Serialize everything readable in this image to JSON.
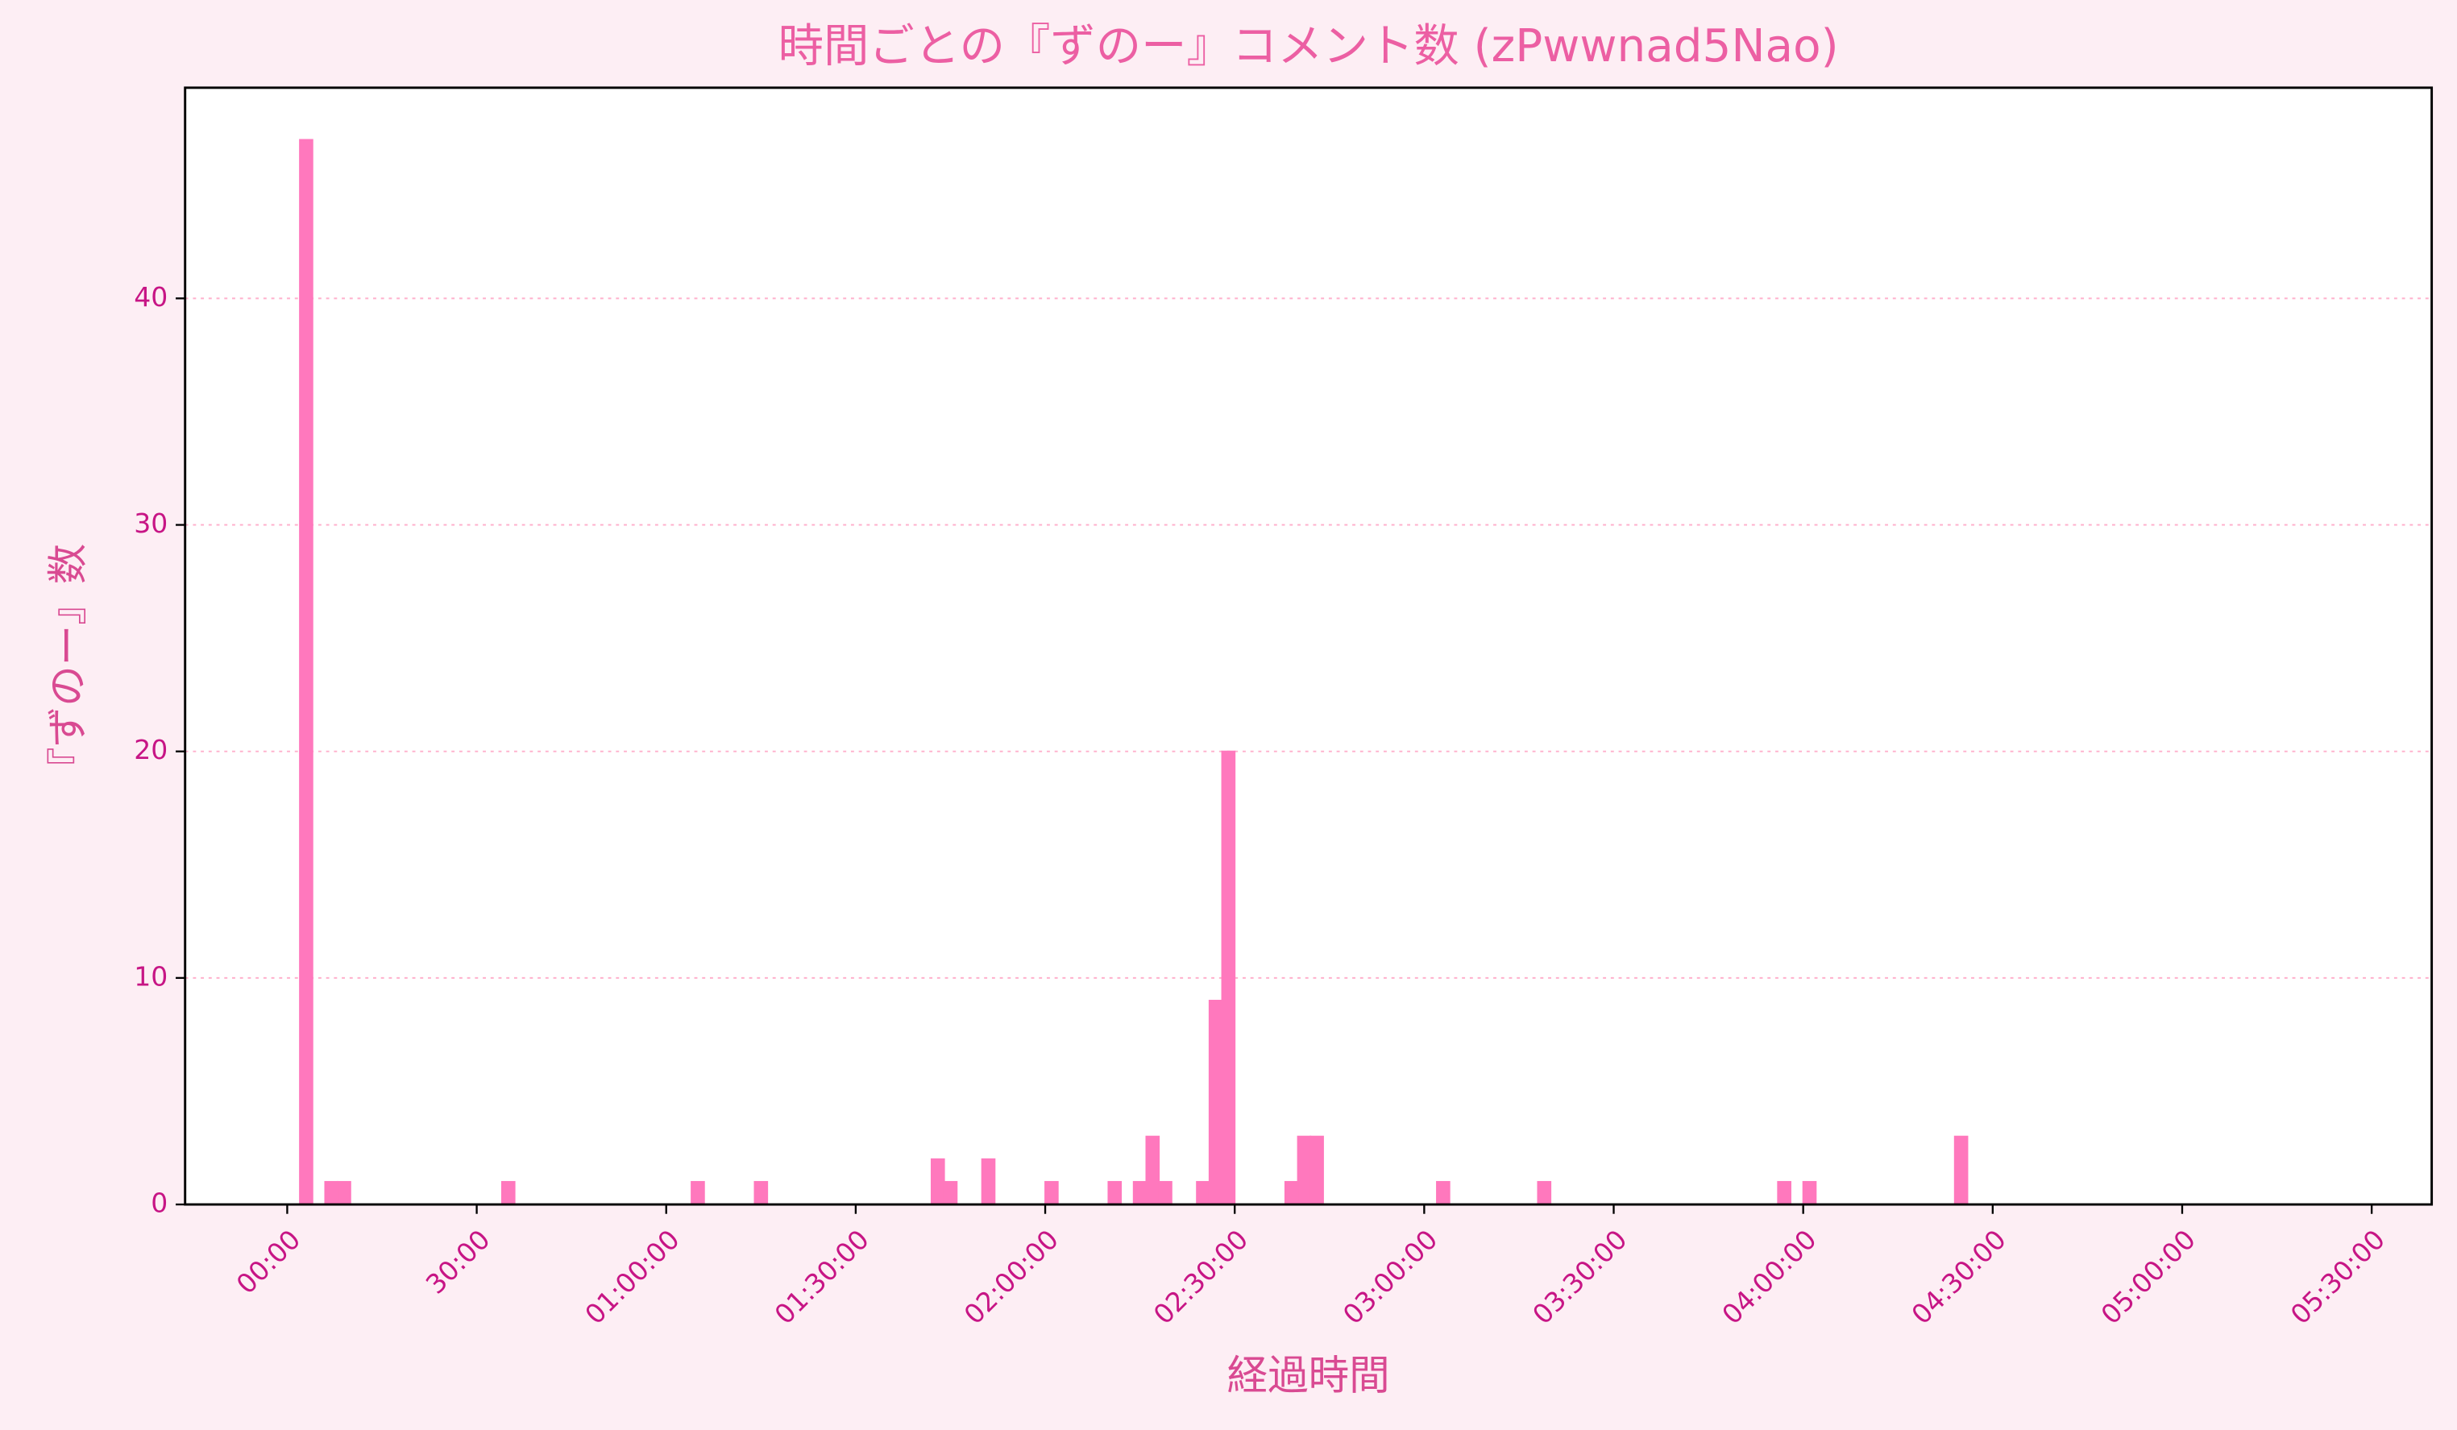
{
  "chart_data": {
    "type": "histogram",
    "title": "時間ごとの『ずのー』コメント数 (zPwwnad5Nao)",
    "x_label": "経過時間",
    "y_label": "『ずのー』数",
    "color": "#ff78bd",
    "grid": true,
    "bins": [
      0,
      120,
      240,
      360,
      480,
      600,
      720,
      840,
      960,
      1080,
      1200,
      1320,
      1440,
      1560,
      1680,
      1800,
      1920,
      2040,
      2160,
      2280,
      2400,
      2520,
      2640,
      2760,
      2880,
      3000,
      3120,
      3240,
      3360,
      3480,
      3600,
      3720,
      3840,
      3960,
      4080,
      4200,
      4320,
      4440,
      4560,
      4680,
      4800,
      4920,
      5040,
      5160,
      5280,
      5400,
      5520,
      5640,
      5760,
      5880,
      6000,
      6120,
      6240,
      6360,
      6480,
      6600,
      6720,
      6840,
      6960,
      7080,
      7200,
      7320,
      7440,
      7560,
      7680,
      7800,
      7920,
      8040,
      8160,
      8280,
      8400,
      8520,
      8640,
      8760,
      8880,
      9000,
      9120,
      9240,
      9360,
      9480,
      9600,
      9720,
      9840,
      9960,
      10080,
      10200,
      10320,
      10440,
      10560,
      10680,
      10800,
      10920,
      11040,
      11160,
      11280,
      11400,
      11520,
      11640,
      11760,
      11880,
      12000,
      12120,
      12240,
      12360,
      12480,
      12600,
      12720,
      12840,
      12960,
      13080,
      13200,
      13320,
      13440,
      13560,
      13680,
      13800,
      13920,
      14040,
      14160,
      14280,
      14400,
      14520,
      14640,
      14760,
      14880,
      15000,
      15120,
      15240,
      15360,
      15480,
      15600,
      15720,
      15840,
      15960,
      16080,
      16200,
      16320,
      16440,
      16560,
      16680,
      16800,
      16920,
      17040,
      17160,
      17280,
      17400,
      17520,
      17640,
      17760,
      17880,
      18000,
      18120,
      18240,
      18360,
      18480,
      18600,
      18720,
      18840,
      18960,
      19080,
      19200,
      19320,
      19440
    ],
    "values": [
      0,
      47,
      0,
      1,
      1,
      0,
      0,
      0,
      0,
      0,
      0,
      0,
      0,
      0,
      0,
      0,
      0,
      1,
      0,
      0,
      0,
      0,
      0,
      0,
      0,
      0,
      0,
      0,
      0,
      0,
      0,
      0,
      1,
      0,
      0,
      0,
      0,
      1,
      0,
      0,
      0,
      0,
      0,
      0,
      0,
      0,
      0,
      0,
      0,
      0,
      0,
      2,
      1,
      0,
      0,
      2,
      0,
      0,
      0,
      0,
      1,
      0,
      0,
      0,
      0,
      1,
      0,
      1,
      3,
      1,
      0,
      0,
      1,
      9,
      20,
      0,
      0,
      0,
      0,
      1,
      3,
      3,
      0,
      0,
      0,
      0,
      0,
      0,
      0,
      0,
      0,
      1,
      0,
      0,
      0,
      0,
      0,
      0,
      0,
      1,
      0,
      0,
      0,
      0,
      0,
      0,
      0,
      0,
      0,
      0,
      0,
      0,
      0,
      0,
      0,
      0,
      0,
      0,
      1,
      0,
      1,
      0,
      0,
      0,
      0,
      0,
      0,
      0,
      0,
      0,
      0,
      0,
      3,
      0,
      0,
      0,
      0,
      0,
      0,
      0,
      0,
      0,
      0,
      0,
      0,
      0,
      0,
      0,
      0,
      0,
      0,
      0,
      0,
      0,
      0,
      0,
      0,
      0,
      0,
      0,
      0,
      0
    ],
    "xlim": [
      -970,
      20370
    ],
    "xticks": [
      {
        "value": 0,
        "label": "00:00"
      },
      {
        "value": 1800,
        "label": "30:00"
      },
      {
        "value": 3600,
        "label": "01:00:00"
      },
      {
        "value": 5400,
        "label": "01:30:00"
      },
      {
        "value": 7200,
        "label": "02:00:00"
      },
      {
        "value": 9000,
        "label": "02:30:00"
      },
      {
        "value": 10800,
        "label": "03:00:00"
      },
      {
        "value": 12600,
        "label": "03:30:00"
      },
      {
        "value": 14400,
        "label": "04:00:00"
      },
      {
        "value": 16200,
        "label": "04:30:00"
      },
      {
        "value": 18000,
        "label": "05:00:00"
      },
      {
        "value": 19800,
        "label": "05:30:00"
      }
    ],
    "ylim": [
      0,
      49.3
    ],
    "yticks": [
      0,
      10,
      20,
      30,
      40
    ]
  }
}
